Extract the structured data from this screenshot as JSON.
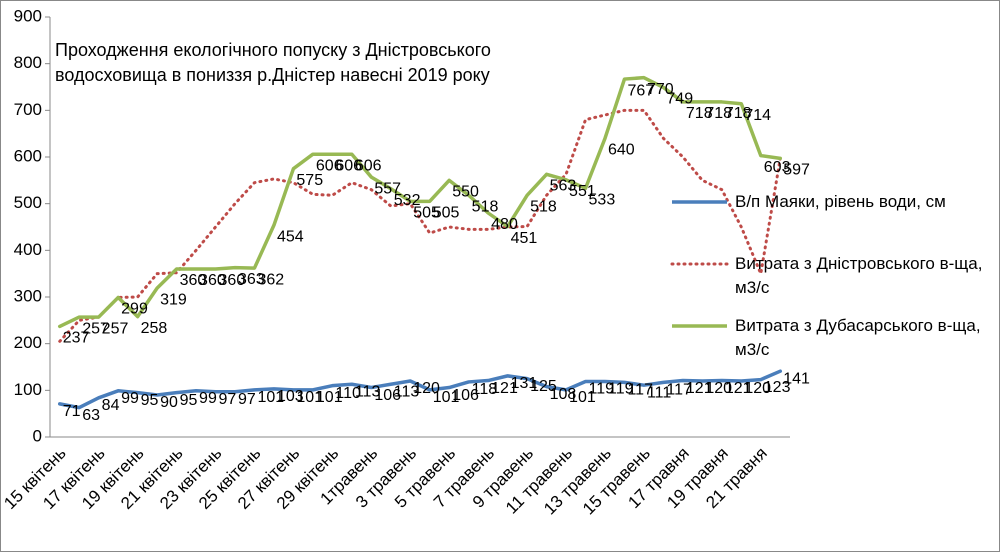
{
  "chart_data": {
    "type": "line",
    "title": "Проходження екологічного попуску з Дністровського водосховища в пониззя р.Дністер навесні 2019 року",
    "categories": [
      "15 квітень",
      null,
      "17 квітень",
      null,
      "19 квітень",
      null,
      "21 квітень",
      null,
      "23 квітень",
      null,
      "25 квітень",
      null,
      "27 квітень",
      null,
      "29 квітень",
      null,
      "1травень",
      null,
      "3 травень",
      null,
      "5 травень",
      null,
      "7 травень",
      null,
      "9 травень",
      null,
      "11 травень",
      null,
      "13 травень",
      null,
      "15 травень",
      null,
      "17 травня",
      null,
      "19 травня",
      null,
      "21 травня",
      null
    ],
    "ylim": [
      0,
      900
    ],
    "yticks": [
      0,
      100,
      200,
      300,
      400,
      500,
      600,
      700,
      800,
      900
    ],
    "grid": false,
    "legend": "right",
    "series": [
      {
        "name": "В/п Маяки, рівень води, см",
        "color": "#4a7ebb",
        "style": "solid",
        "labels": true,
        "values": [
          71,
          63,
          84,
          99,
          95,
          90,
          95,
          99,
          97,
          97,
          101,
          103,
          101,
          101,
          110,
          113,
          106,
          113,
          120,
          101,
          106,
          118,
          121,
          131,
          125,
          108,
          101,
          119,
          119,
          117,
          111,
          117,
          121,
          120,
          121,
          120,
          123,
          141
        ]
      },
      {
        "name": "Витрата з Дністровського в-ща, м3/с",
        "color": "#be4b48",
        "style": "dotted",
        "labels": false,
        "values": [
          205,
          250,
          257,
          299,
          300,
          350,
          352,
          400,
          450,
          500,
          545,
          553,
          545,
          520,
          518,
          545,
          530,
          495,
          500,
          437,
          450,
          445,
          445,
          450,
          451,
          518,
          563,
          680,
          690,
          700,
          700,
          640,
          600,
          550,
          530,
          450,
          350,
          597
        ]
      },
      {
        "name": "Витрата з Дубасарського в-ща, м3/с",
        "color": "#98b954",
        "style": "solid",
        "labels": true,
        "values": [
          237,
          257,
          257,
          299,
          258,
          319,
          360,
          360,
          360,
          363,
          362,
          454,
          575,
          606,
          606,
          606,
          557,
          532,
          505,
          505,
          550,
          518,
          480,
          451,
          518,
          563,
          551,
          533,
          640,
          767,
          770,
          749,
          718,
          718,
          718,
          714,
          603,
          597
        ]
      }
    ]
  }
}
